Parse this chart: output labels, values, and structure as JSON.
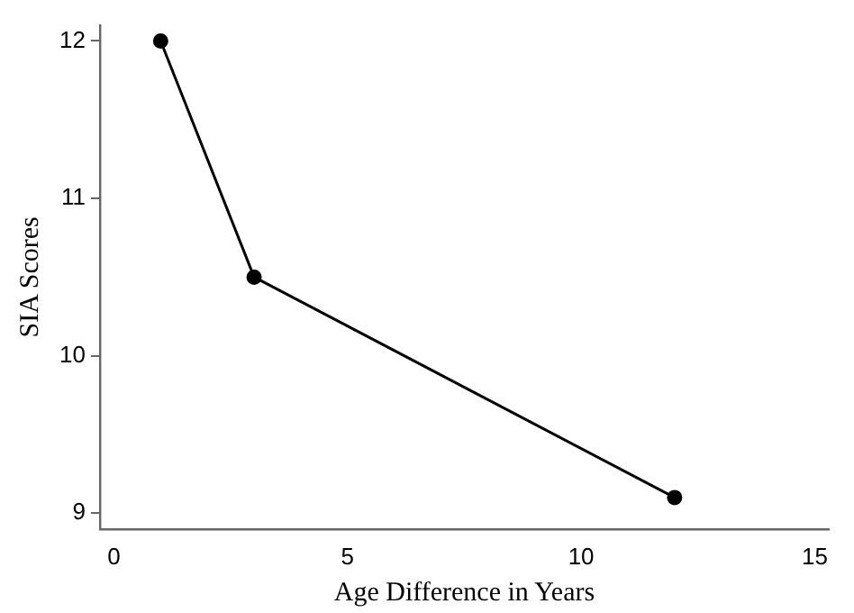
{
  "chart_data": {
    "type": "line",
    "xlabel": "Age Difference in Years",
    "ylabel": "SIA Scores",
    "x": [
      1,
      3,
      12
    ],
    "series": [
      {
        "color": "#000000",
        "values": [
          12,
          10.5,
          9.1
        ]
      }
    ],
    "xlim": [
      -0.3,
      15.3
    ],
    "xticks": [
      0,
      5,
      10,
      15
    ],
    "ylim": [
      8.9,
      12.1
    ],
    "yticks": [
      9,
      10,
      11,
      12
    ],
    "grid": false,
    "legend": false,
    "marker": "circle",
    "line_style": "solid"
  }
}
